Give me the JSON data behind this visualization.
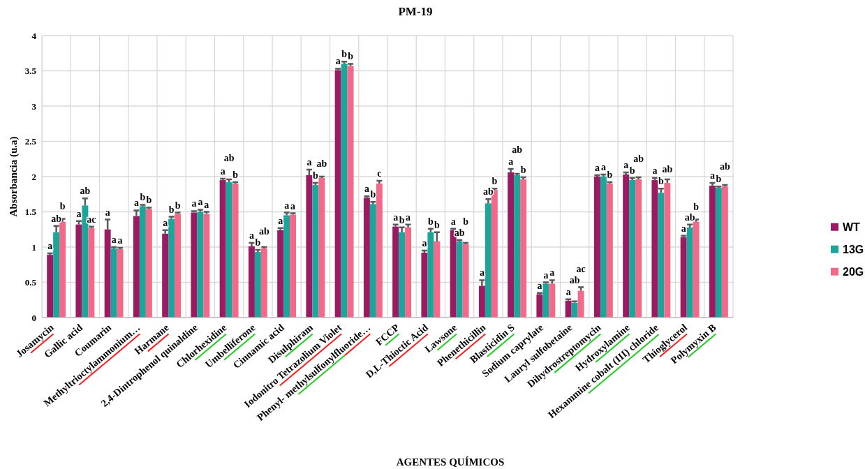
{
  "chart_data": {
    "type": "bar",
    "title": "PM-19",
    "xlabel": "AGENTES QUÍMICOS",
    "ylabel": "Absorbancia (u.a)",
    "categories": [
      "Josamycin",
      "Gallic acid",
      "Coumarin",
      "Methyltrioctylammonium…",
      "Harmane",
      "2,4-Dintrophenol quinaldine",
      "Chlorhexidine",
      "Umbelliferone",
      "Cinnamic acid",
      "Disulphiram",
      "Iodonitro Tetrazolium Violet",
      "Phenyl- methylsulfonylfluoride…",
      "FCCP",
      "D,L-Thioctic Acid",
      "Lawsone",
      "Phenethicillin",
      "Blasticidin S",
      "Sodium caprylate",
      "Lauryl sulfobetaine",
      "Dihydrostreptomycin",
      "Hydroxylamine",
      "Hexammine cobalt (III) chloride",
      "Thioglycerol",
      "Polymyxin B"
    ],
    "ylim": [
      0,
      4
    ],
    "yticks": [
      0,
      0.5,
      1,
      1.5,
      2,
      2.5,
      3,
      3.5,
      4
    ],
    "grid": true,
    "legend": "right",
    "series": [
      {
        "name": "WT",
        "color": "#9b1b62",
        "values": [
          0.89,
          1.32,
          1.25,
          1.44,
          1.19,
          1.49,
          1.95,
          1.01,
          1.24,
          2.02,
          3.51,
          1.7,
          1.29,
          0.92,
          1.24,
          0.45,
          2.06,
          0.33,
          0.24,
          2.0,
          2.03,
          1.95,
          1.14,
          1.87
        ],
        "errors": [
          [
            0.89,
            0.91
          ],
          [
            1.32,
            1.37
          ],
          [
            1.25,
            1.39
          ],
          [
            1.44,
            1.52
          ],
          [
            1.19,
            1.24
          ],
          [
            1.49,
            1.51
          ],
          [
            1.95,
            1.97
          ],
          [
            1.01,
            1.06
          ],
          [
            1.24,
            1.27
          ],
          [
            2.02,
            2.1
          ],
          [
            3.51,
            3.53
          ],
          [
            1.7,
            1.72
          ],
          [
            1.29,
            1.32
          ],
          [
            0.92,
            0.95
          ],
          [
            1.24,
            1.26
          ],
          [
            0.45,
            0.53
          ],
          [
            2.06,
            2.11
          ],
          [
            0.33,
            0.35
          ],
          [
            0.24,
            0.26
          ],
          [
            2.0,
            2.02
          ],
          [
            2.03,
            2.06
          ],
          [
            1.95,
            1.98
          ],
          [
            1.14,
            1.16
          ],
          [
            1.87,
            1.91
          ]
        ],
        "value_labels": [
          "a",
          "a",
          "a",
          "a",
          "a",
          "a",
          "a",
          "a",
          "a",
          "a",
          "a",
          "a",
          "a",
          "a",
          "a",
          "a",
          "a",
          "a",
          "a",
          "a",
          "a",
          "a",
          "a",
          "a"
        ]
      },
      {
        "name": "13G",
        "color": "#1ba59b",
        "values": [
          1.21,
          1.59,
          0.98,
          1.58,
          1.4,
          1.5,
          1.92,
          0.93,
          1.45,
          1.88,
          3.6,
          1.61,
          1.21,
          1.21,
          1.08,
          1.62,
          2.02,
          0.48,
          0.21,
          2.0,
          1.95,
          1.77,
          1.28,
          1.84
        ],
        "errors": [
          [
            1.21,
            1.3
          ],
          [
            1.59,
            1.69
          ],
          [
            0.98,
            1.0
          ],
          [
            1.58,
            1.6
          ],
          [
            1.4,
            1.43
          ],
          [
            1.5,
            1.53
          ],
          [
            1.92,
            1.96
          ],
          [
            0.93,
            0.96
          ],
          [
            1.45,
            1.49
          ],
          [
            1.88,
            1.91
          ],
          [
            3.6,
            3.63
          ],
          [
            1.61,
            1.64
          ],
          [
            1.21,
            1.28
          ],
          [
            1.21,
            1.26
          ],
          [
            1.08,
            1.1
          ],
          [
            1.62,
            1.68
          ],
          [
            2.02,
            2.04
          ],
          [
            0.48,
            0.5
          ],
          [
            0.21,
            0.23
          ],
          [
            2.0,
            2.03
          ],
          [
            1.95,
            1.98
          ],
          [
            1.77,
            1.83
          ],
          [
            1.28,
            1.32
          ],
          [
            1.84,
            1.86
          ]
        ],
        "value_labels": [
          "ab",
          "ab",
          "a",
          "b",
          "b",
          "a",
          "ab",
          "b",
          "a",
          "b",
          "b",
          "b",
          "b",
          "b",
          "ab",
          "ab",
          "ab",
          "a",
          "ab",
          "a",
          "b",
          "b",
          "ab",
          "b"
        ]
      },
      {
        "name": "20G",
        "color": "#f2698a",
        "values": [
          1.36,
          1.27,
          0.97,
          1.54,
          1.47,
          1.47,
          1.9,
          0.98,
          1.46,
          1.98,
          3.57,
          1.9,
          1.28,
          1.08,
          1.04,
          1.81,
          1.96,
          0.48,
          0.38,
          1.9,
          1.96,
          1.91,
          1.36,
          1.86
        ],
        "errors": [
          [
            1.36,
            1.4
          ],
          [
            1.27,
            1.29
          ],
          [
            0.97,
            0.99
          ],
          [
            1.54,
            1.56
          ],
          [
            1.47,
            1.49
          ],
          [
            1.47,
            1.5
          ],
          [
            1.9,
            1.92
          ],
          [
            0.98,
            1.0
          ],
          [
            1.46,
            1.48
          ],
          [
            1.98,
            2.0
          ],
          [
            3.57,
            3.6
          ],
          [
            1.9,
            1.94
          ],
          [
            1.28,
            1.32
          ],
          [
            1.08,
            1.21
          ],
          [
            1.04,
            1.06
          ],
          [
            1.81,
            1.83
          ],
          [
            1.96,
            1.99
          ],
          [
            0.48,
            0.53
          ],
          [
            0.38,
            0.43
          ],
          [
            1.9,
            1.92
          ],
          [
            1.96,
            1.99
          ],
          [
            1.91,
            1.96
          ],
          [
            1.36,
            1.39
          ],
          [
            1.86,
            1.88
          ]
        ],
        "value_labels": [
          "b",
          "ac",
          "a",
          "b",
          "b",
          "a",
          "b",
          "ab",
          "a",
          "ab",
          "b",
          "c",
          "a",
          "b",
          "b",
          "b",
          "b",
          "a",
          "ac",
          "b",
          "ab",
          "ab",
          "b",
          "ab"
        ]
      }
    ]
  }
}
